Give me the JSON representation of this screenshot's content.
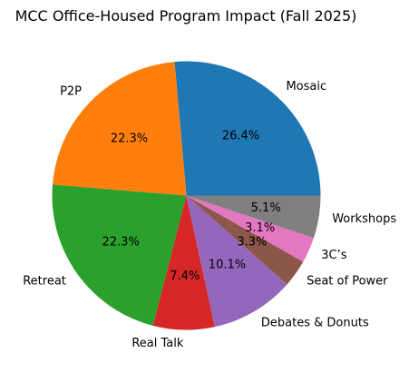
{
  "chart_data": {
    "type": "pie",
    "title": "MCC Office-Housed Program Impact (Fall 2025)",
    "slices": [
      {
        "label": "Mosaic",
        "value": 26.4,
        "pct_label": "26.4%",
        "color": "#1f77b4"
      },
      {
        "label": "P2P",
        "value": 22.3,
        "pct_label": "22.3%",
        "color": "#ff7f0e"
      },
      {
        "label": "Retreat",
        "value": 22.3,
        "pct_label": "22.3%",
        "color": "#2ca02c"
      },
      {
        "label": "Real Talk",
        "value": 7.4,
        "pct_label": "7.4%",
        "color": "#d62728"
      },
      {
        "label": "Debates & Donuts",
        "value": 10.1,
        "pct_label": "10.1%",
        "color": "#9467bd"
      },
      {
        "label": "Seat of Power",
        "value": 3.3,
        "pct_label": "3.3%",
        "color": "#8c564b"
      },
      {
        "label": "3C’s",
        "value": 3.1,
        "pct_label": "3.1%",
        "color": "#e377c2"
      },
      {
        "label": "Workshops",
        "value": 5.1,
        "pct_label": "5.1%",
        "color": "#7f7f7f"
      }
    ],
    "start_angle_deg": 0,
    "direction": "counterclockwise"
  }
}
